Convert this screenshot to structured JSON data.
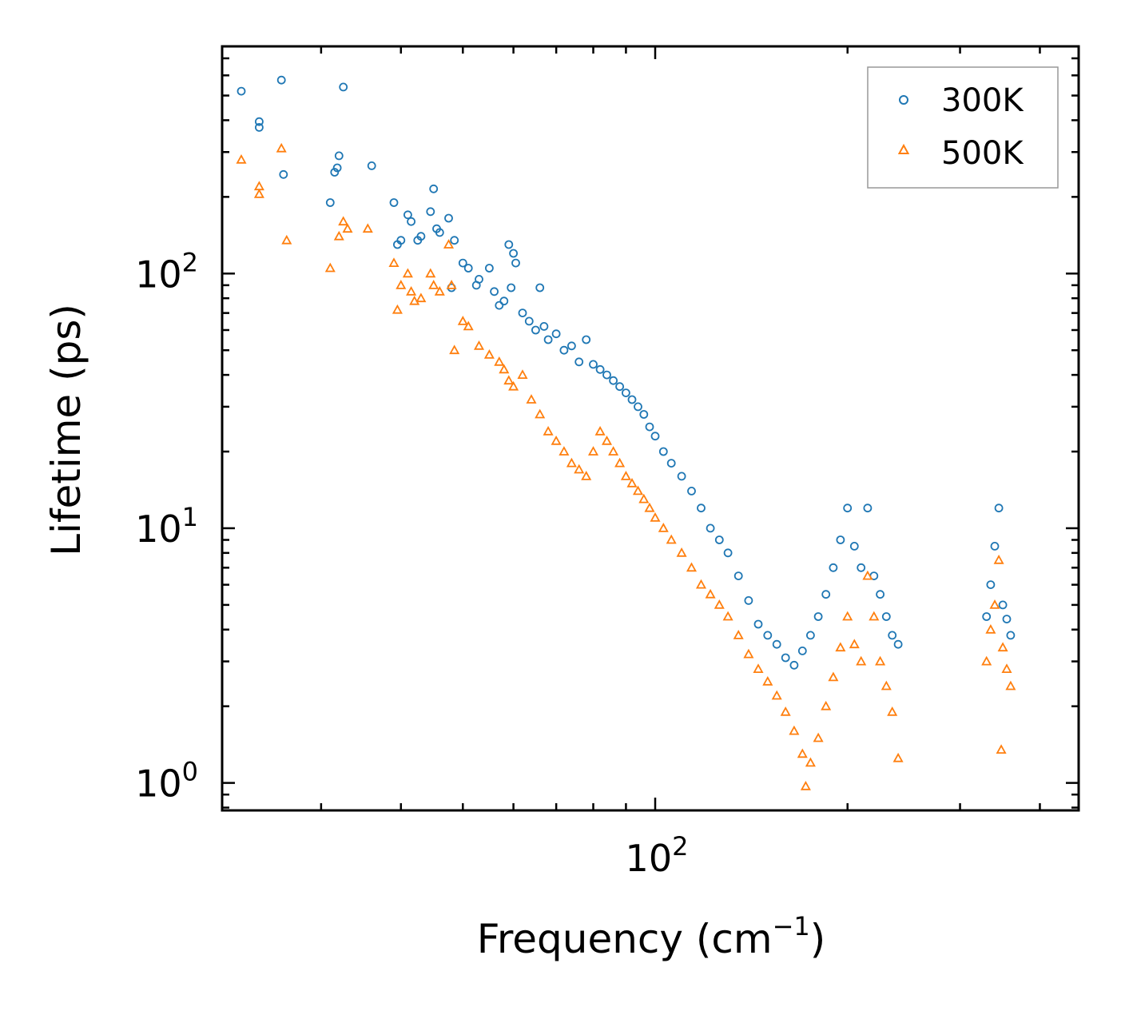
{
  "chart_data": {
    "type": "scatter",
    "xscale": "log",
    "yscale": "log",
    "xlim": [
      21,
      460
    ],
    "ylim": [
      0.78,
      780
    ],
    "xlabel": "Frequency (cm",
    "xlabel_sup": "−1",
    "xlabel_tail": ")",
    "ylabel": "Lifetime (ps)",
    "x_ticks": [
      {
        "base": "10",
        "exp": "2",
        "value": 100
      }
    ],
    "y_ticks": [
      {
        "base": "10",
        "exp": "0",
        "value": 1
      },
      {
        "base": "10",
        "exp": "1",
        "value": 10
      },
      {
        "base": "10",
        "exp": "2",
        "value": 100
      }
    ],
    "legend_position": "top-right",
    "series": [
      {
        "name": "300K",
        "marker": "circle",
        "color": "#1f77b4",
        "points": [
          [
            22.5,
            520
          ],
          [
            24.0,
            395
          ],
          [
            24.0,
            375
          ],
          [
            26.0,
            575
          ],
          [
            26.2,
            245
          ],
          [
            31.5,
            250
          ],
          [
            31.8,
            260
          ],
          [
            31.0,
            190
          ],
          [
            32.0,
            290
          ],
          [
            32.5,
            540
          ],
          [
            36.0,
            265
          ],
          [
            39.0,
            190
          ],
          [
            39.5,
            130
          ],
          [
            40.0,
            135
          ],
          [
            41.0,
            170
          ],
          [
            41.5,
            160
          ],
          [
            42.5,
            135
          ],
          [
            43.0,
            140
          ],
          [
            44.5,
            175
          ],
          [
            45.0,
            215
          ],
          [
            45.5,
            150
          ],
          [
            46.0,
            145
          ],
          [
            47.5,
            165
          ],
          [
            48.0,
            88
          ],
          [
            48.5,
            135
          ],
          [
            50.0,
            110
          ],
          [
            51.0,
            105
          ],
          [
            52.5,
            90
          ],
          [
            53.0,
            95
          ],
          [
            55.0,
            105
          ],
          [
            56.0,
            85
          ],
          [
            57.0,
            75
          ],
          [
            58.0,
            78
          ],
          [
            59.0,
            130
          ],
          [
            59.5,
            88
          ],
          [
            60.0,
            120
          ],
          [
            60.5,
            110
          ],
          [
            62.0,
            70
          ],
          [
            63.5,
            65
          ],
          [
            65.0,
            60
          ],
          [
            66.0,
            88
          ],
          [
            67.0,
            62
          ],
          [
            68.0,
            55
          ],
          [
            70.0,
            58
          ],
          [
            72.0,
            50
          ],
          [
            74.0,
            52
          ],
          [
            76.0,
            45
          ],
          [
            78.0,
            55
          ],
          [
            80.0,
            44
          ],
          [
            82.0,
            42
          ],
          [
            84.0,
            40
          ],
          [
            86.0,
            38
          ],
          [
            88.0,
            36
          ],
          [
            90.0,
            34
          ],
          [
            92.0,
            32
          ],
          [
            94.0,
            30
          ],
          [
            96.0,
            28
          ],
          [
            98.0,
            25
          ],
          [
            100.0,
            23
          ],
          [
            103.0,
            20
          ],
          [
            106.0,
            18
          ],
          [
            110.0,
            16
          ],
          [
            114.0,
            14
          ],
          [
            118.0,
            12
          ],
          [
            122.0,
            10
          ],
          [
            126.0,
            9
          ],
          [
            130.0,
            8
          ],
          [
            135.0,
            6.5
          ],
          [
            140.0,
            5.2
          ],
          [
            145.0,
            4.2
          ],
          [
            150.0,
            3.8
          ],
          [
            155.0,
            3.5
          ],
          [
            160.0,
            3.1
          ],
          [
            165.0,
            2.9
          ],
          [
            170.0,
            3.3
          ],
          [
            175.0,
            3.8
          ],
          [
            180.0,
            4.5
          ],
          [
            185.0,
            5.5
          ],
          [
            190.0,
            7.0
          ],
          [
            195.0,
            9.0
          ],
          [
            200.0,
            12.0
          ],
          [
            205.0,
            8.5
          ],
          [
            210.0,
            7.0
          ],
          [
            215.0,
            12.0
          ],
          [
            220.0,
            6.5
          ],
          [
            225.0,
            5.5
          ],
          [
            230.0,
            4.5
          ],
          [
            235.0,
            3.8
          ],
          [
            240.0,
            3.5
          ],
          [
            330.0,
            4.5
          ],
          [
            335.0,
            6.0
          ],
          [
            340.0,
            8.5
          ],
          [
            345.0,
            12.0
          ],
          [
            350.0,
            5.0
          ],
          [
            355.0,
            4.4
          ],
          [
            360.0,
            3.8
          ]
        ]
      },
      {
        "name": "500K",
        "marker": "triangle",
        "color": "#ff7f0e",
        "points": [
          [
            22.5,
            280
          ],
          [
            24.0,
            220
          ],
          [
            24.0,
            205
          ],
          [
            26.0,
            310
          ],
          [
            26.5,
            135
          ],
          [
            31.0,
            105
          ],
          [
            32.0,
            140
          ],
          [
            32.5,
            160
          ],
          [
            33.0,
            150
          ],
          [
            35.5,
            150
          ],
          [
            39.0,
            110
          ],
          [
            39.5,
            72
          ],
          [
            40.0,
            90
          ],
          [
            41.0,
            100
          ],
          [
            41.5,
            85
          ],
          [
            42.0,
            78
          ],
          [
            43.0,
            80
          ],
          [
            44.5,
            100
          ],
          [
            45.0,
            90
          ],
          [
            46.0,
            85
          ],
          [
            47.5,
            130
          ],
          [
            48.0,
            90
          ],
          [
            48.5,
            50
          ],
          [
            50.0,
            65
          ],
          [
            51.0,
            62
          ],
          [
            53.0,
            52
          ],
          [
            55.0,
            48
          ],
          [
            57.0,
            45
          ],
          [
            58.0,
            42
          ],
          [
            59.0,
            38
          ],
          [
            60.0,
            36
          ],
          [
            62.0,
            40
          ],
          [
            64.0,
            32
          ],
          [
            66.0,
            28
          ],
          [
            68.0,
            24
          ],
          [
            70.0,
            22
          ],
          [
            72.0,
            20
          ],
          [
            74.0,
            18
          ],
          [
            76.0,
            17
          ],
          [
            78.0,
            16
          ],
          [
            80.0,
            20
          ],
          [
            82.0,
            24
          ],
          [
            84.0,
            22
          ],
          [
            86.0,
            20
          ],
          [
            88.0,
            18
          ],
          [
            90.0,
            16
          ],
          [
            92.0,
            15
          ],
          [
            94.0,
            14
          ],
          [
            96.0,
            13
          ],
          [
            98.0,
            12
          ],
          [
            100.0,
            11
          ],
          [
            103.0,
            10
          ],
          [
            106.0,
            9
          ],
          [
            110.0,
            8
          ],
          [
            114.0,
            7
          ],
          [
            118.0,
            6
          ],
          [
            122.0,
            5.5
          ],
          [
            126.0,
            5
          ],
          [
            130.0,
            4.5
          ],
          [
            135.0,
            3.8
          ],
          [
            140.0,
            3.2
          ],
          [
            145.0,
            2.8
          ],
          [
            150.0,
            2.5
          ],
          [
            155.0,
            2.2
          ],
          [
            160.0,
            1.9
          ],
          [
            165.0,
            1.6
          ],
          [
            170.0,
            1.3
          ],
          [
            172.0,
            0.97
          ],
          [
            175.0,
            1.2
          ],
          [
            180.0,
            1.5
          ],
          [
            185.0,
            2.0
          ],
          [
            190.0,
            2.6
          ],
          [
            195.0,
            3.4
          ],
          [
            200.0,
            4.5
          ],
          [
            205.0,
            3.5
          ],
          [
            210.0,
            3.0
          ],
          [
            215.0,
            6.5
          ],
          [
            220.0,
            4.5
          ],
          [
            225.0,
            3.0
          ],
          [
            230.0,
            2.4
          ],
          [
            235.0,
            1.9
          ],
          [
            240.0,
            1.25
          ],
          [
            330.0,
            3.0
          ],
          [
            335.0,
            4.0
          ],
          [
            340.0,
            5.0
          ],
          [
            345.0,
            7.5
          ],
          [
            348.0,
            1.35
          ],
          [
            350.0,
            3.4
          ],
          [
            355.0,
            2.8
          ],
          [
            360.0,
            2.4
          ]
        ]
      }
    ]
  }
}
